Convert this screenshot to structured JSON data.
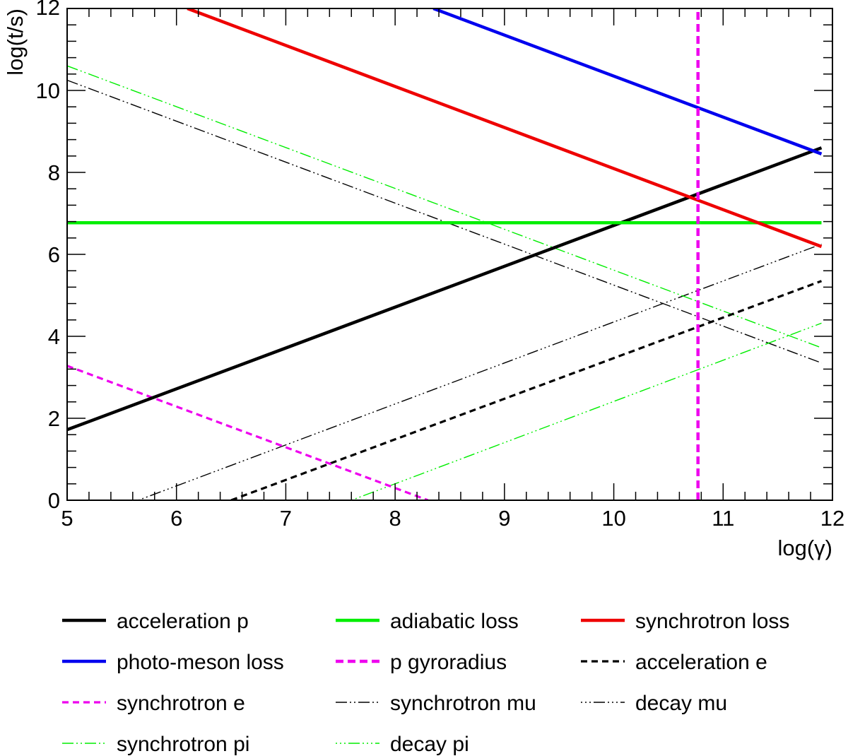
{
  "chart_data": {
    "type": "line",
    "title": "",
    "xlabel": "log(γ)",
    "ylabel": "log(t/s)",
    "xlim": [
      5,
      12
    ],
    "ylim": [
      0,
      12
    ],
    "x_ticks": [
      "5",
      "6",
      "7",
      "8",
      "9",
      "10",
      "11",
      "12"
    ],
    "y_ticks": [
      "0",
      "2",
      "4",
      "6",
      "8",
      "10",
      "12"
    ],
    "grid": false,
    "legend_position": "bottom",
    "series": [
      {
        "name": "acceleration p",
        "color": "#000000",
        "style": "solid",
        "width": "thick",
        "x": [
          5.0,
          11.9
        ],
        "y": [
          1.72,
          8.6
        ]
      },
      {
        "name": "adiabatic loss",
        "color": "#00ee00",
        "style": "solid",
        "width": "thick",
        "x": [
          5.0,
          11.9
        ],
        "y": [
          6.77,
          6.77
        ]
      },
      {
        "name": "synchrotron loss",
        "color": "#ee0000",
        "style": "solid",
        "width": "thick",
        "x": [
          6.1,
          11.9
        ],
        "y": [
          12.0,
          6.19
        ]
      },
      {
        "name": "photo-meson loss",
        "color": "#0000ee",
        "style": "solid",
        "width": "thick",
        "x": [
          8.35,
          11.9
        ],
        "y": [
          12.0,
          8.45
        ]
      },
      {
        "name": "p gyroradius",
        "color": "#ee00ee",
        "style": "dashed",
        "width": "thick",
        "x": [
          10.77,
          10.77
        ],
        "y": [
          0,
          12.0
        ]
      },
      {
        "name": "acceleration e",
        "color": "#000000",
        "style": "dashed",
        "width": "medium",
        "x": [
          6.5,
          11.9
        ],
        "y": [
          0,
          5.35
        ]
      },
      {
        "name": "synchrotron e",
        "color": "#ee00ee",
        "style": "dashed",
        "width": "medium",
        "x": [
          5.0,
          8.3
        ],
        "y": [
          3.28,
          0
        ]
      },
      {
        "name": "synchrotron mu",
        "color": "#000000",
        "style": "dashdotdot",
        "width": "thin",
        "x": [
          5.0,
          11.9
        ],
        "y": [
          10.25,
          3.35
        ]
      },
      {
        "name": "decay mu",
        "color": "#000000",
        "style": "dashdotdot2",
        "width": "thin",
        "x": [
          5.65,
          11.9
        ],
        "y": [
          0,
          6.25
        ]
      },
      {
        "name": "synchrotron pi",
        "color": "#00ee00",
        "style": "dashdotdot",
        "width": "thin",
        "x": [
          5.0,
          11.9
        ],
        "y": [
          10.6,
          3.72
        ]
      },
      {
        "name": "decay pi",
        "color": "#00ee00",
        "style": "dashdotdot2",
        "width": "thin",
        "x": [
          7.6,
          11.9
        ],
        "y": [
          0,
          4.32
        ]
      }
    ],
    "legend": [
      [
        "acceleration p",
        "adiabatic loss",
        "synchrotron loss"
      ],
      [
        "photo-meson loss",
        "p gyroradius",
        "acceleration e"
      ],
      [
        "synchrotron e",
        "synchrotron mu",
        "decay mu"
      ],
      [
        "synchrotron pi",
        "decay pi"
      ]
    ]
  }
}
